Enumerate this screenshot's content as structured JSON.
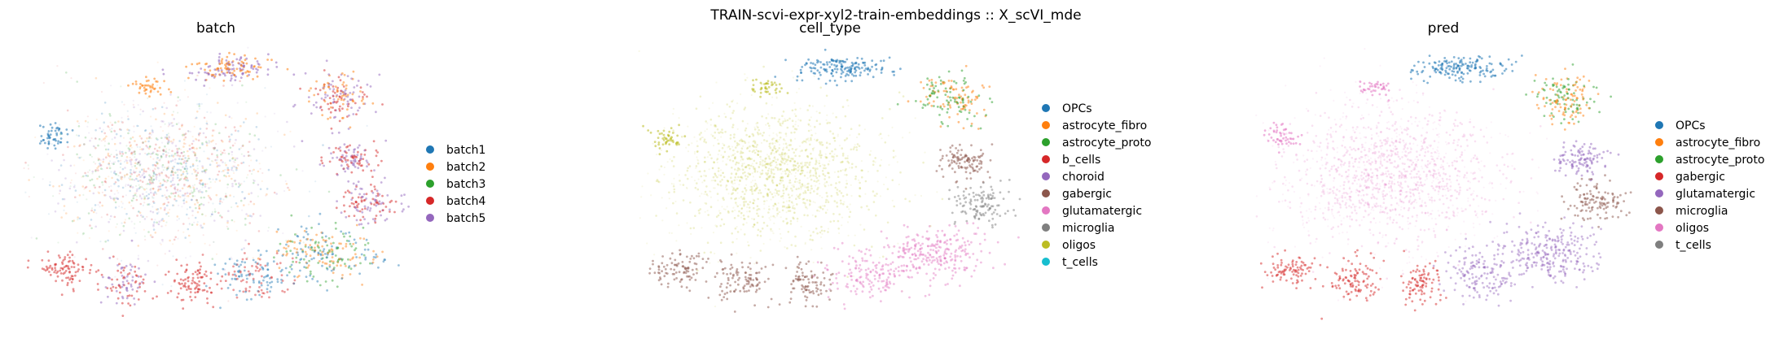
{
  "figure": {
    "suptitle": "TRAIN-scvi-expr-xyl2-train-embeddings :: X_scVI_mde"
  },
  "chart_data": [
    {
      "type": "scatter",
      "title": "batch",
      "xlabel": "",
      "ylabel": "",
      "grid": false,
      "legend_position": "right",
      "series": [
        {
          "name": "batch1",
          "color": "#1f77b4"
        },
        {
          "name": "batch2",
          "color": "#ff7f0e"
        },
        {
          "name": "batch3",
          "color": "#2ca02c"
        },
        {
          "name": "batch4",
          "color": "#d62728"
        },
        {
          "name": "batch5",
          "color": "#9467bd"
        }
      ]
    },
    {
      "type": "scatter",
      "title": "cell_type",
      "xlabel": "",
      "ylabel": "",
      "grid": false,
      "legend_position": "right",
      "series": [
        {
          "name": "OPCs",
          "color": "#1f77b4"
        },
        {
          "name": "astrocyte_fibro",
          "color": "#ff7f0e"
        },
        {
          "name": "astrocyte_proto",
          "color": "#2ca02c"
        },
        {
          "name": "b_cells",
          "color": "#d62728"
        },
        {
          "name": "choroid",
          "color": "#9467bd"
        },
        {
          "name": "gabergic",
          "color": "#8c564b"
        },
        {
          "name": "glutamatergic",
          "color": "#e377c2"
        },
        {
          "name": "microglia",
          "color": "#7f7f7f"
        },
        {
          "name": "oligos",
          "color": "#bcbd22"
        },
        {
          "name": "t_cells",
          "color": "#17becf"
        }
      ]
    },
    {
      "type": "scatter",
      "title": "pred",
      "xlabel": "",
      "ylabel": "",
      "grid": false,
      "legend_position": "right",
      "series": [
        {
          "name": "OPCs",
          "color": "#1f77b4"
        },
        {
          "name": "astrocyte_fibro",
          "color": "#ff7f0e"
        },
        {
          "name": "astrocyte_proto",
          "color": "#2ca02c"
        },
        {
          "name": "gabergic",
          "color": "#d62728"
        },
        {
          "name": "glutamatergic",
          "color": "#9467bd"
        },
        {
          "name": "microglia",
          "color": "#8c564b"
        },
        {
          "name": "oligos",
          "color": "#e377c2"
        },
        {
          "name": "t_cells",
          "color": "#7f7f7f"
        }
      ]
    }
  ]
}
